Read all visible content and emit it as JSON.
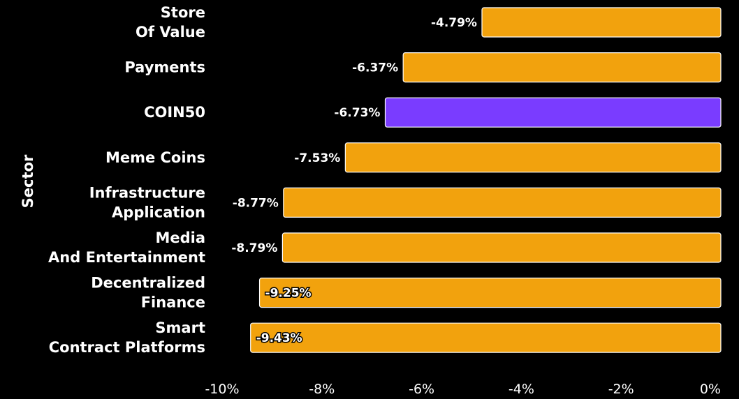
{
  "chart_data": {
    "type": "bar",
    "orientation": "horizontal",
    "ylabel": "Sector",
    "xlim": [
      -10,
      0
    ],
    "x_ticks": [
      "-10%",
      "-8%",
      "-6%",
      "-4%",
      "-2%",
      "0%"
    ],
    "grid": false,
    "categories": [
      [
        "Store",
        "Of Value"
      ],
      [
        "Payments"
      ],
      [
        "COIN50"
      ],
      [
        "Meme Coins"
      ],
      [
        "Infrastructure",
        "Application"
      ],
      [
        "Media",
        "And Entertainment"
      ],
      [
        "Decentralized",
        "Finance"
      ],
      [
        "Smart",
        "Contract Platforms"
      ]
    ],
    "values": [
      -4.79,
      -6.37,
      -6.73,
      -7.53,
      -8.77,
      -8.79,
      -9.25,
      -9.43
    ],
    "value_labels": [
      "-4.79%",
      "-6.37%",
      "-6.73%",
      "-7.53%",
      "-8.77%",
      "-8.79%",
      "-9.25%",
      "-9.43%"
    ],
    "colors": [
      "#f2a20d",
      "#f2a20d",
      "#7a3cff",
      "#f2a20d",
      "#f2a20d",
      "#f2a20d",
      "#f2a20d",
      "#f2a20d"
    ]
  }
}
